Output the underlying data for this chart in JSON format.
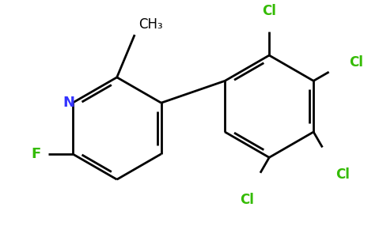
{
  "background_color": "#ffffff",
  "bond_color": "#000000",
  "f_color": "#33bb00",
  "n_color": "#3333ff",
  "cl_color": "#33bb00",
  "ch3_color": "#000000",
  "line_width": 2.0,
  "dbo": 0.055,
  "figsize": [
    4.84,
    3.0
  ],
  "dpi": 100,
  "xlim": [
    0.0,
    5.2
  ],
  "ylim": [
    0.1,
    3.3
  ]
}
